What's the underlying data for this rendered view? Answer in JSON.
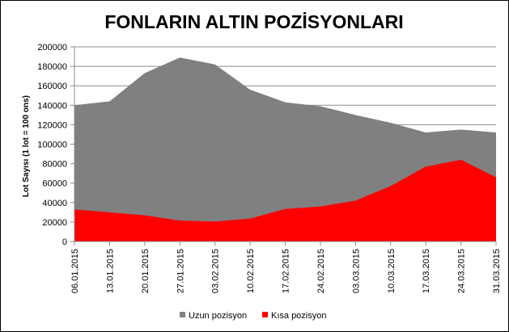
{
  "chart_data": {
    "type": "area",
    "title": "FONLARIN ALTIN POZİSYONLARI",
    "ylabel": "Lot Sayısı  (1 lot = 100 ons)",
    "xlabel": "",
    "ylim": [
      0,
      200000
    ],
    "yticks": [
      0,
      20000,
      40000,
      60000,
      80000,
      100000,
      120000,
      140000,
      160000,
      180000,
      200000
    ],
    "grid": true,
    "legend_position": "bottom",
    "x": [
      "06.01.2015",
      "13.01.2015",
      "20.01.2015",
      "27.01.2015",
      "03.02.2015",
      "10.02.2015",
      "17.02.2015",
      "24.02.2015",
      "03.03.2015",
      "10.03.2015",
      "17.03.2015",
      "24.03.2015",
      "31.03.2015"
    ],
    "series": [
      {
        "name": "Uzun pozisyon",
        "color": "#808080",
        "values": [
          140000,
          144000,
          173000,
          189000,
          182000,
          156000,
          143000,
          139000,
          130000,
          122000,
          112000,
          115000,
          112000
        ]
      },
      {
        "name": "Kısa pozisyon",
        "color": "#ff0000",
        "values": [
          33000,
          30000,
          27000,
          21500,
          20500,
          23500,
          33500,
          36000,
          42000,
          57000,
          77000,
          84000,
          66000
        ]
      }
    ]
  }
}
